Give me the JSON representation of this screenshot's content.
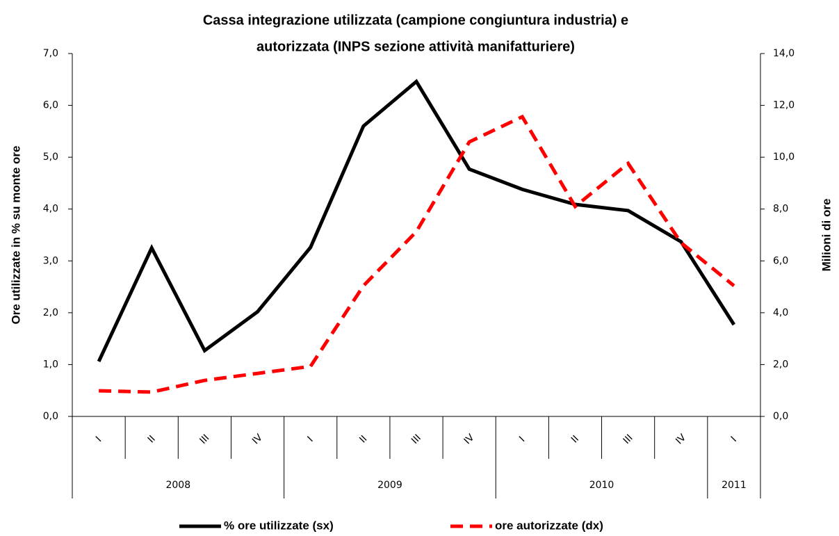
{
  "chart_data": {
    "type": "line",
    "title": [
      "Cassa integrazione utilizzata (campione congiuntura industria) e",
      "autorizzata (INPS sezione attività manifatturiere)"
    ],
    "categories": [
      "I",
      "II",
      "III",
      "IV",
      "I",
      "II",
      "III",
      "IV",
      "I",
      "II",
      "III",
      "IV",
      "I"
    ],
    "category_groups": [
      "2008",
      null,
      null,
      null,
      "2009",
      null,
      null,
      null,
      "2010",
      null,
      null,
      null,
      "2011"
    ],
    "ylabel": "Ore utilizzate in % su monte ore",
    "y2label": "Milioni di ore",
    "ylim": [
      0,
      7
    ],
    "yticks": [
      {
        "value": 0,
        "label": "0,0"
      },
      {
        "value": 1,
        "label": "1,0"
      },
      {
        "value": 2,
        "label": "2,0"
      },
      {
        "value": 3,
        "label": "3,0"
      },
      {
        "value": 4,
        "label": "4,0"
      },
      {
        "value": 5,
        "label": "5,0"
      },
      {
        "value": 6,
        "label": "6,0"
      },
      {
        "value": 7,
        "label": "7,0"
      }
    ],
    "y2lim": [
      0,
      14
    ],
    "y2ticks": [
      {
        "value": 0,
        "label": "0,0"
      },
      {
        "value": 2,
        "label": "2,0"
      },
      {
        "value": 4,
        "label": "4,0"
      },
      {
        "value": 6,
        "label": "6,0"
      },
      {
        "value": 8,
        "label": "8,0"
      },
      {
        "value": 10,
        "label": "10,0"
      },
      {
        "value": 12,
        "label": "12,0"
      },
      {
        "value": 14,
        "label": "14,0"
      }
    ],
    "grid": false,
    "legend": "bottom",
    "series": [
      {
        "name": "% ore utilizzate (sx)",
        "color": "#000000",
        "line_style": "solid",
        "values": [
          1.06,
          3.25,
          1.27,
          2.02,
          3.26,
          5.6,
          6.46,
          4.77,
          4.38,
          4.09,
          3.97,
          3.37,
          1.77
        ]
      },
      {
        "name": "ore autorizzate (dx)",
        "color": "#ff0000",
        "line_style": "dashed",
        "axis": "y2",
        "values": [
          0.99,
          0.94,
          1.39,
          1.66,
          1.93,
          5.04,
          7.13,
          10.59,
          11.56,
          8.1,
          9.76,
          6.7,
          5.04
        ]
      }
    ]
  }
}
